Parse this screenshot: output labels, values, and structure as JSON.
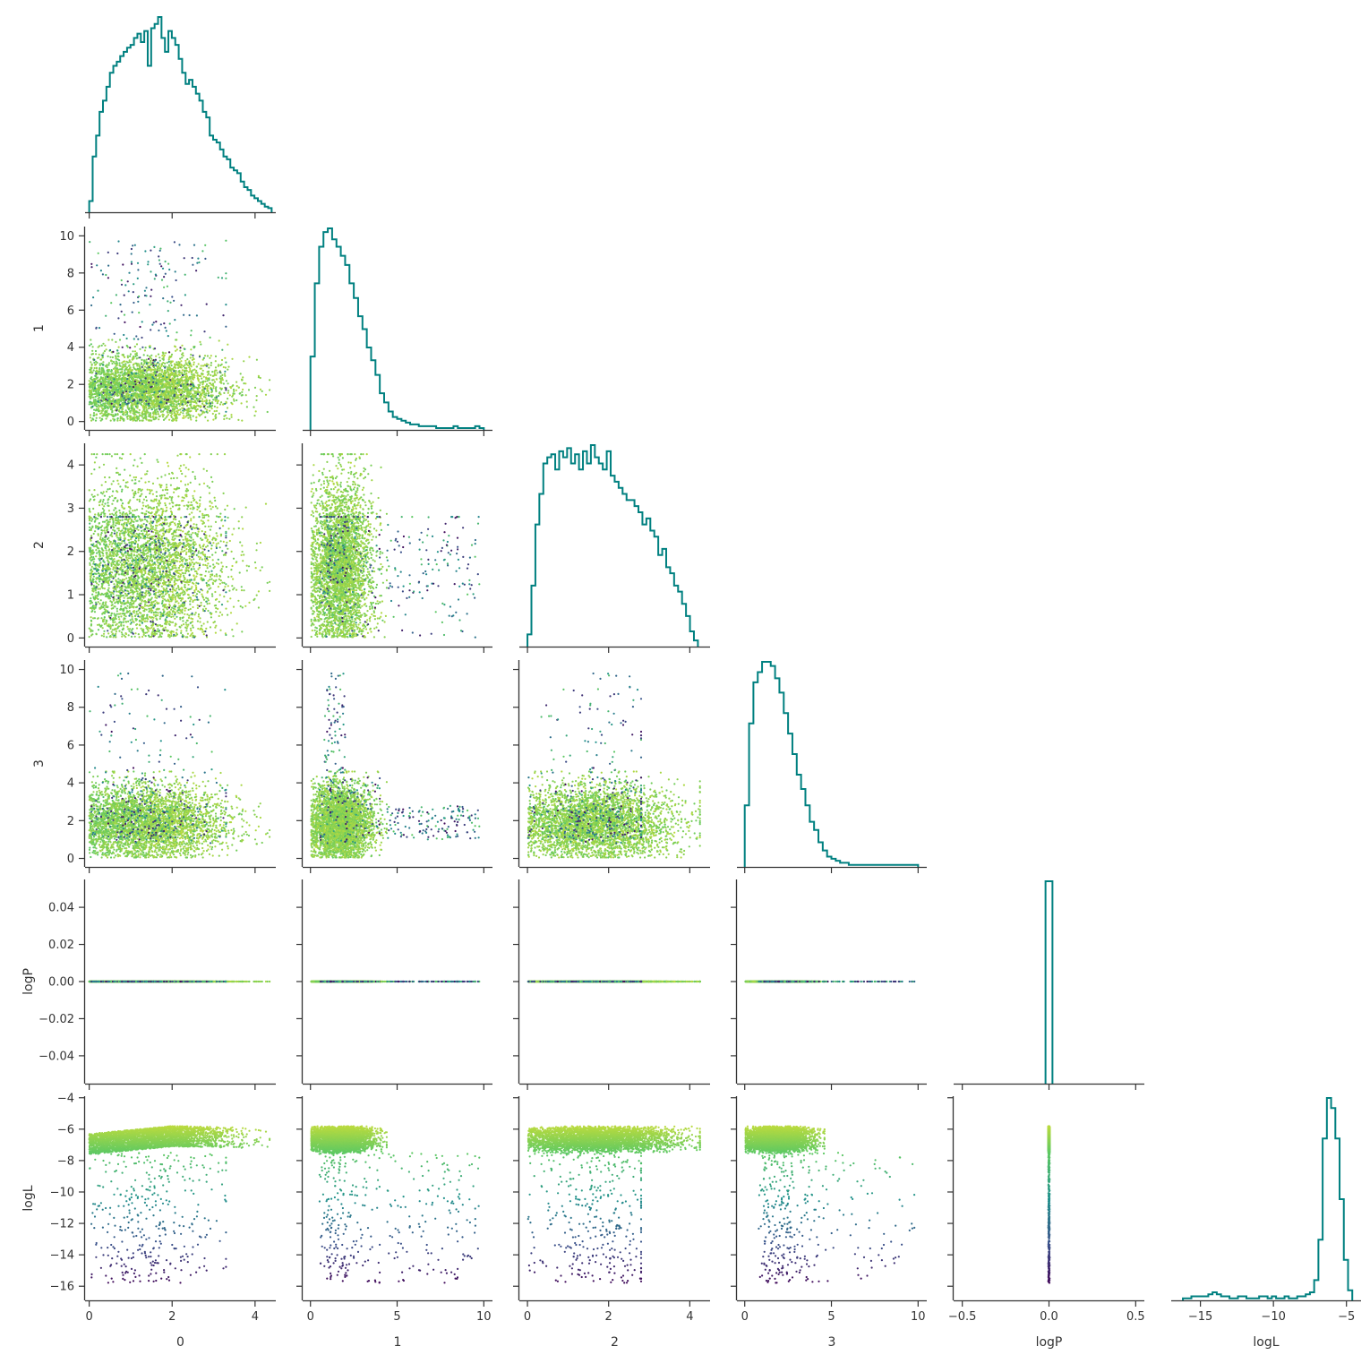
{
  "chart_data": {
    "type": "scatter",
    "layout": "corner-pairplot",
    "variables": [
      "0",
      "1",
      "2",
      "3",
      "logP",
      "logL"
    ],
    "axis_labels": [
      "0",
      "1",
      "2",
      "3",
      "logP",
      "logL"
    ],
    "ranges": {
      "0": [
        -0.1,
        4.5
      ],
      "1": [
        -0.45,
        10.5
      ],
      "2": [
        -0.2,
        4.5
      ],
      "3": [
        -0.45,
        10.5
      ],
      "logP": [
        -0.055,
        0.055
      ],
      "logL": [
        -16.9,
        -3.9
      ]
    },
    "ticks": {
      "0": [
        0,
        2,
        4
      ],
      "1": [
        0,
        5,
        10
      ],
      "2": [
        0,
        2,
        4
      ],
      "3": [
        0,
        5,
        10
      ],
      "logP": [
        -0.5,
        0.0,
        0.5
      ],
      "logL": [
        -15,
        -10,
        -5
      ]
    },
    "y_ticks": {
      "1": [
        0,
        2,
        4,
        6,
        8,
        10
      ],
      "2": [
        0,
        1,
        2,
        3,
        4
      ],
      "3": [
        0,
        2,
        4,
        6,
        8,
        10
      ],
      "logP": [
        -0.04,
        -0.02,
        0.0,
        0.02,
        0.04
      ],
      "logL": [
        -16,
        -14,
        -12,
        -10,
        -8,
        -6,
        -4
      ]
    },
    "y_tick_labels": {
      "1": [
        "0",
        "2",
        "4",
        "6",
        "8",
        "10"
      ],
      "2": [
        "0",
        "1",
        "2",
        "3",
        "4"
      ],
      "3": [
        "0",
        "2",
        "4",
        "6",
        "8",
        "10"
      ],
      "logP": [
        "−0.04",
        "−0.02",
        "0.00",
        "0.02",
        "0.04"
      ],
      "logL": [
        "−16",
        "−14",
        "−12",
        "−10",
        "−8",
        "−6",
        "−4"
      ]
    },
    "x_tick_labels": {
      "0": [
        "0",
        "2",
        "4"
      ],
      "1": [
        "0",
        "5",
        "10"
      ],
      "2": [
        "0",
        "2",
        "4"
      ],
      "3": [
        "0",
        "5",
        "10"
      ],
      "logP": [
        "−0.5",
        "0.0",
        "0.5"
      ],
      "logL": [
        "−15",
        "−10",
        "−5"
      ]
    },
    "histograms": {
      "0": {
        "edges_range": [
          0.0,
          4.4
        ],
        "counts": [
          8,
          40,
          55,
          72,
          80,
          90,
          100,
          105,
          108,
          112,
          115,
          118,
          120,
          125,
          128,
          122,
          130,
          105,
          132,
          135,
          140,
          125,
          115,
          130,
          125,
          120,
          110,
          100,
          92,
          95,
          90,
          85,
          80,
          72,
          68,
          55,
          52,
          50,
          45,
          40,
          38,
          32,
          30,
          28,
          22,
          18,
          16,
          12,
          10,
          8,
          6,
          4,
          3
        ]
      },
      "1": {
        "edges_range": [
          0.0,
          10.0
        ],
        "counts": [
          40,
          80,
          100,
          108,
          110,
          104,
          100,
          95,
          90,
          80,
          72,
          62,
          55,
          45,
          38,
          30,
          20,
          15,
          10,
          7,
          6,
          5,
          4,
          3,
          3,
          2,
          2,
          2,
          2,
          1,
          1,
          1,
          1,
          2,
          1,
          1,
          1,
          1,
          2,
          1
        ]
      },
      "2": {
        "edges_range": [
          0.0,
          4.2
        ],
        "counts": [
          4,
          20,
          40,
          50,
          60,
          62,
          63,
          58,
          64,
          62,
          65,
          60,
          63,
          58,
          64,
          60,
          66,
          62,
          60,
          58,
          64,
          56,
          54,
          52,
          50,
          48,
          48,
          46,
          44,
          40,
          42,
          38,
          36,
          30,
          32,
          26,
          24,
          20,
          18,
          14,
          10,
          5,
          2
        ]
      },
      "3": {
        "edges_range": [
          0.0,
          10.0
        ],
        "counts": [
          30,
          70,
          90,
          95,
          100,
          100,
          98,
          92,
          85,
          75,
          65,
          55,
          45,
          38,
          30,
          22,
          18,
          12,
          8,
          5,
          4,
          3,
          2,
          2,
          1,
          1,
          1,
          1,
          1,
          1,
          1,
          1,
          1,
          1,
          1,
          1,
          1,
          1,
          1,
          1
        ]
      },
      "logP": {
        "edges_range": [
          -0.02,
          0.02
        ],
        "counts": [
          100
        ]
      },
      "logL": {
        "edges_range": [
          -16.2,
          -4.6
        ],
        "counts": [
          1,
          1,
          2,
          2,
          2,
          2,
          3,
          4,
          3,
          2,
          2,
          1,
          1,
          2,
          2,
          1,
          1,
          1,
          2,
          2,
          1,
          2,
          1,
          1,
          2,
          1,
          1,
          2,
          2,
          3,
          4,
          10,
          30,
          80,
          100,
          95,
          80,
          50,
          20,
          5
        ]
      }
    },
    "colormap": [
      "#440154",
      "#3b528b",
      "#21918c",
      "#5ec962",
      "#fde725"
    ],
    "hist_color": "#008080",
    "n_samples": 3500
  }
}
